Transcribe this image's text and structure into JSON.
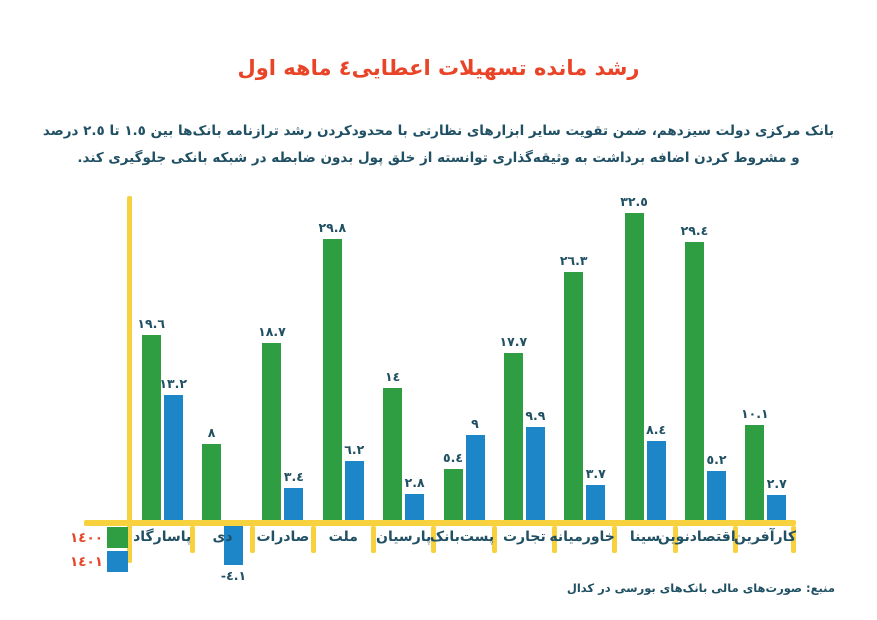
{
  "title": {
    "text": "رشد مانده تسهیلات اعطایی٤ ماهه اول"
  },
  "description": {
    "line1": "بانک مرکزی دولت سیزدهم، ضمن تقویت سایر ابزارهای نظارتی با محدودکردن رشد ترازنامه بانک‌ها بین ١.٥ تا ٢.٥ درصد",
    "line2": "و مشروط کردن اضافه برداشت به وثیقه‌گذاری توانسته از خلق پول بدون ضابطه در شبکه بانکی جلوگیری کند."
  },
  "legend": {
    "items": [
      {
        "label": "١٤٠٠",
        "color": "#2f9e43"
      },
      {
        "label": "١٤٠١",
        "color": "#1d86c8"
      }
    ]
  },
  "chart_data": {
    "type": "bar",
    "title": "رشد مانده تسهیلات اعطایی٤ ماهه اول",
    "categories": [
      "پاسارگاد",
      "دی",
      "صادرات",
      "ملت",
      "پارسیان",
      "پست‌بانک",
      "تجارت",
      "خاورمیانه",
      "سینا",
      "اقتصادنوین",
      "کارآفرین"
    ],
    "series": [
      {
        "name": "١٤٠٠",
        "color": "#2f9e43",
        "values": [
          19.6,
          8,
          18.7,
          29.8,
          14,
          5.4,
          17.7,
          26.3,
          32.5,
          29.4,
          10.1
        ],
        "value_labels": [
          "١٩.٦",
          "٨",
          "١٨.٧",
          "٢٩.٨",
          "١٤",
          "٥.٤",
          "١٧.٧",
          "٢٦.٣",
          "٣٢.٥",
          "٢٩.٤",
          "١٠.١"
        ]
      },
      {
        "name": "١٤٠١",
        "color": "#1d86c8",
        "values": [
          13.2,
          -4.1,
          3.4,
          6.2,
          2.8,
          9,
          9.9,
          3.7,
          8.4,
          5.2,
          2.7
        ],
        "value_labels": [
          "١٣.٢",
          "-٤.١",
          "٣.٤",
          "٦.٢",
          "٢.٨",
          "٩",
          "٩.٩",
          "٣.٧",
          "٨.٤",
          "٥.٢",
          "٢.٧"
        ]
      }
    ],
    "xlabel": "",
    "ylabel": "",
    "ylim": [
      -5,
      34.5
    ],
    "grid": false,
    "legend_position": "bottom-left",
    "axis_color": "#f7d13e",
    "value_label_color": "#205063",
    "unit": "درصد"
  },
  "source": {
    "text": "منبع: صورت‌های مالی بانک‌های بورسی در کدال"
  }
}
